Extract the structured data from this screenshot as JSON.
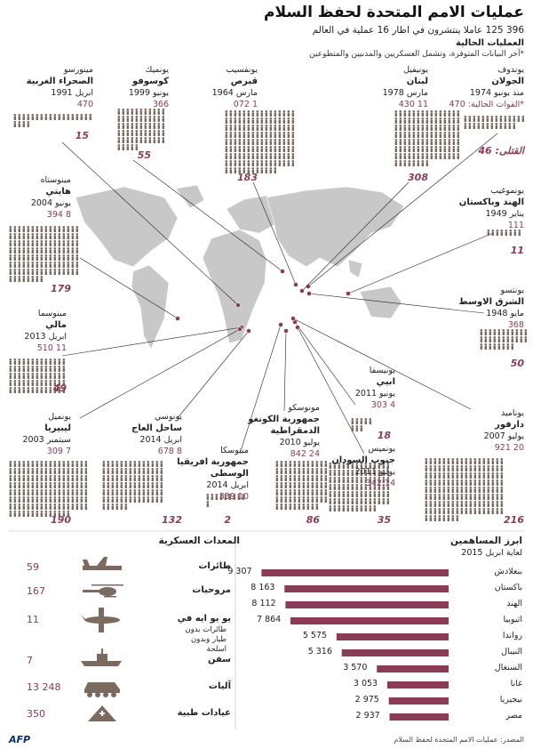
{
  "header": {
    "title": "عمليات الامم المتحدة لحفظ السلام",
    "subtitle": "396 125 عاملا ينتشرون في اطار 16 عملية في العالم",
    "current_ops": "العمليات الحالية",
    "footnote": "*آخر البيانات المتوفرة، وتشمل العسكريين والمدنيين والمتطوعين"
  },
  "legend": {
    "forces_label": "*القوات الحالية:",
    "forces_value": "470",
    "fatalities_label": "القتلى:",
    "fatalities_value": "46"
  },
  "missions": [
    {
      "id": "undof",
      "code": "يوندوف",
      "loc": "الجولان",
      "date": "منذ يونيو 1974",
      "total": "",
      "fat": "46"
    },
    {
      "id": "unifil",
      "code": "يونيفيل",
      "loc": "لبنان",
      "date": "مارس 1978",
      "total": "11 430",
      "fat": "308"
    },
    {
      "id": "unficyp",
      "code": "يونفسيب",
      "loc": "قبرص",
      "date": "مارس 1964",
      "total": "1 072",
      "fat": "183"
    },
    {
      "id": "unmik",
      "code": "يونميك",
      "loc": "كوسوفو",
      "date": "يونيو 1999",
      "total": "366",
      "fat": "55"
    },
    {
      "id": "minurso",
      "code": "مينورسو",
      "loc": "الصحراء الغربية",
      "date": "ابريل 1991",
      "total": "470",
      "fat": "15"
    },
    {
      "id": "minustah",
      "code": "مينوستاه",
      "loc": "هايتي",
      "date": "يونيو 2004",
      "total": "8 394",
      "fat": "179"
    },
    {
      "id": "unmogip",
      "code": "يونموغيب",
      "loc": "الهند وباكستان",
      "date": "يناير 1949",
      "total": "111",
      "fat": "11"
    },
    {
      "id": "untso",
      "code": "يونتسو",
      "loc": "الشرق الاوسط",
      "date": "مايو 1948",
      "total": "368",
      "fat": "50"
    },
    {
      "id": "minusma",
      "code": "مينوسما",
      "loc": "مالي",
      "date": "ابريل 2013",
      "total": "11 510",
      "fat": "49"
    },
    {
      "id": "unisfa",
      "code": "يونيسفا",
      "loc": "ابيي",
      "date": "يونيو 2011",
      "total": "4 303",
      "fat": "18"
    },
    {
      "id": "unamid",
      "code": "يوناميد",
      "loc": "دارفور",
      "date": "يوليو 2007",
      "total": "20 921",
      "fat": "216"
    },
    {
      "id": "unmiss",
      "code": "يونميس",
      "loc": "جنوب السودان",
      "date": "يوليو 2011",
      "total": "14 342",
      "fat": "35"
    },
    {
      "id": "monusco",
      "code": "مونوسكو",
      "loc": "جمهورية الكونغو الدمقراطية",
      "date": "يوليو 2010",
      "total": "24 842",
      "fat": "86"
    },
    {
      "id": "minusca",
      "code": "مينوسكا",
      "loc": "جمهورية افريقيا الوسطى",
      "date": "ابريل 2014",
      "total": "10 339",
      "fat": "2"
    },
    {
      "id": "unoci",
      "code": "يونوسي",
      "loc": "ساحل العاج",
      "date": "ابريل 2014",
      "total": "8 678",
      "fat": "132"
    },
    {
      "id": "unmil",
      "code": "يونميل",
      "loc": "ليبيريا",
      "date": "سبتمبر 2003",
      "total": "7 309",
      "fat": "190"
    }
  ],
  "contributors": {
    "title": "ابرز المساهمين",
    "subtitle": "لغاية ابريل 2015"
  },
  "equipment": {
    "title": "المعدات العسكرية",
    "items": [
      {
        "label": "طائرات",
        "sub": "",
        "value": "59",
        "icon": "plane-icon"
      },
      {
        "label": "مروحيات",
        "sub": "",
        "value": "167",
        "icon": "helicopter-icon"
      },
      {
        "label": "يو يو ايه في",
        "sub": "طائرات بدون طيار وبدون اسلحة",
        "value": "11",
        "icon": "drone-icon"
      },
      {
        "label": "سفن",
        "sub": "",
        "value": "7",
        "icon": "ship-icon"
      },
      {
        "label": "آليات",
        "sub": "",
        "value": "13 248",
        "icon": "vehicle-icon"
      },
      {
        "label": "عيادات طبية",
        "sub": "",
        "value": "350",
        "icon": "tent-icon"
      }
    ]
  },
  "chart_data": {
    "type": "bar",
    "title": "ابرز المساهمين",
    "subtitle": "لغاية ابريل 2015",
    "categories": [
      "بنغلادش",
      "باكستان",
      "الهند",
      "اثيوبيا",
      "رواندا",
      "النيبال",
      "السنغال",
      "غانا",
      "نيجيريا",
      "مصر"
    ],
    "values": [
      9307,
      8163,
      8112,
      7864,
      5575,
      5316,
      3570,
      3053,
      2975,
      2937
    ],
    "value_labels": [
      "9 307",
      "8 163",
      "8 112",
      "7 864",
      "5 575",
      "5 316",
      "3 570",
      "3 053",
      "2 975",
      "2 937"
    ],
    "orientation": "horizontal",
    "xlim": [
      0,
      9500
    ],
    "bar_color": "#8a3b55"
  },
  "footer": {
    "source": "المصدر: عمليات الامم المتحدة لحفظ السلام",
    "logo": "AFP"
  },
  "colors": {
    "accent": "#8a3b55",
    "icon": "#7a6a60",
    "map": "#c8c8c8",
    "bar": "#8a3b55"
  }
}
